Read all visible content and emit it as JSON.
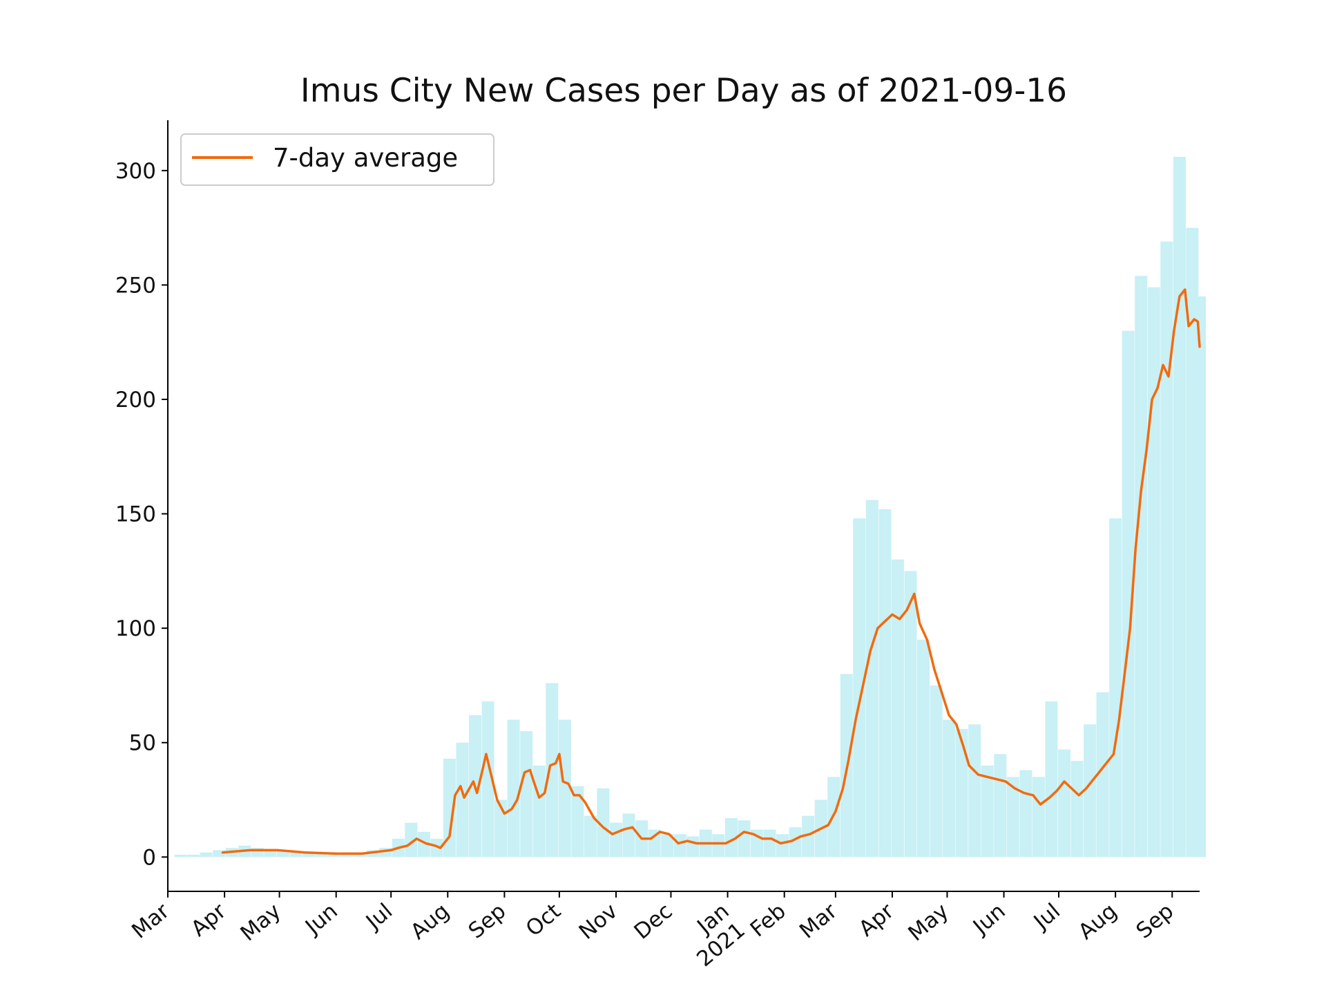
{
  "chart_data": {
    "type": "bar",
    "title": "Imus City New Cases per Day as of 2021-09-16",
    "xlabel": "",
    "ylabel": "",
    "ylim": [
      -15,
      322
    ],
    "xlim": [
      "2020-03-01",
      "2021-09-16"
    ],
    "yticks": [
      0,
      50,
      100,
      150,
      200,
      250,
      300
    ],
    "xticks": [
      {
        "date": "2020-03-01",
        "label": "Mar"
      },
      {
        "date": "2020-04-01",
        "label": "Apr"
      },
      {
        "date": "2020-05-01",
        "label": "May"
      },
      {
        "date": "2020-06-01",
        "label": "Jun"
      },
      {
        "date": "2020-07-01",
        "label": "Jul"
      },
      {
        "date": "2020-08-01",
        "label": "Aug"
      },
      {
        "date": "2020-09-01",
        "label": "Sep"
      },
      {
        "date": "2020-10-01",
        "label": "Oct"
      },
      {
        "date": "2020-11-01",
        "label": "Nov"
      },
      {
        "date": "2020-12-01",
        "label": "Dec"
      },
      {
        "date": "2021-01-01",
        "label": "Jan\n2021"
      },
      {
        "date": "2021-02-01",
        "label": "Feb"
      },
      {
        "date": "2021-03-01",
        "label": "Mar"
      },
      {
        "date": "2021-04-01",
        "label": "Apr"
      },
      {
        "date": "2021-05-01",
        "label": "May"
      },
      {
        "date": "2021-06-01",
        "label": "Jun"
      },
      {
        "date": "2021-07-01",
        "label": "Jul"
      },
      {
        "date": "2021-08-01",
        "label": "Aug"
      },
      {
        "date": "2021-09-01",
        "label": "Sep"
      }
    ],
    "legend": {
      "position": "top-left",
      "entries": [
        "7-day average"
      ]
    },
    "grid": false,
    "series": [
      {
        "name": "",
        "kind": "bar",
        "color": "#c8f0f5",
        "points": [
          [
            "2020-03-08",
            1
          ],
          [
            "2020-03-15",
            1
          ],
          [
            "2020-03-22",
            2
          ],
          [
            "2020-03-29",
            3
          ],
          [
            "2020-04-05",
            4
          ],
          [
            "2020-04-12",
            5
          ],
          [
            "2020-04-19",
            4
          ],
          [
            "2020-04-26",
            3
          ],
          [
            "2020-05-03",
            3
          ],
          [
            "2020-05-10",
            2
          ],
          [
            "2020-05-17",
            2
          ],
          [
            "2020-05-24",
            2
          ],
          [
            "2020-05-31",
            1
          ],
          [
            "2020-06-07",
            2
          ],
          [
            "2020-06-14",
            2
          ],
          [
            "2020-06-21",
            3
          ],
          [
            "2020-06-28",
            4
          ],
          [
            "2020-07-05",
            8
          ],
          [
            "2020-07-12",
            15
          ],
          [
            "2020-07-19",
            11
          ],
          [
            "2020-07-26",
            8
          ],
          [
            "2020-08-02",
            43
          ],
          [
            "2020-08-09",
            50
          ],
          [
            "2020-08-16",
            62
          ],
          [
            "2020-08-23",
            68
          ],
          [
            "2020-08-30",
            25
          ],
          [
            "2020-09-06",
            60
          ],
          [
            "2020-09-13",
            55
          ],
          [
            "2020-09-20",
            40
          ],
          [
            "2020-09-27",
            76
          ],
          [
            "2020-10-04",
            60
          ],
          [
            "2020-10-11",
            31
          ],
          [
            "2020-10-18",
            18
          ],
          [
            "2020-10-25",
            30
          ],
          [
            "2020-11-01",
            15
          ],
          [
            "2020-11-08",
            19
          ],
          [
            "2020-11-15",
            16
          ],
          [
            "2020-11-22",
            12
          ],
          [
            "2020-11-29",
            10
          ],
          [
            "2020-12-06",
            10
          ],
          [
            "2020-12-13",
            9
          ],
          [
            "2020-12-20",
            12
          ],
          [
            "2020-12-27",
            10
          ],
          [
            "2021-01-03",
            17
          ],
          [
            "2021-01-10",
            16
          ],
          [
            "2021-01-17",
            12
          ],
          [
            "2021-01-24",
            12
          ],
          [
            "2021-01-31",
            10
          ],
          [
            "2021-02-07",
            13
          ],
          [
            "2021-02-14",
            18
          ],
          [
            "2021-02-21",
            25
          ],
          [
            "2021-02-28",
            35
          ],
          [
            "2021-03-07",
            80
          ],
          [
            "2021-03-14",
            148
          ],
          [
            "2021-03-21",
            156
          ],
          [
            "2021-03-28",
            152
          ],
          [
            "2021-04-04",
            130
          ],
          [
            "2021-04-11",
            125
          ],
          [
            "2021-04-18",
            95
          ],
          [
            "2021-04-25",
            75
          ],
          [
            "2021-05-02",
            60
          ],
          [
            "2021-05-09",
            56
          ],
          [
            "2021-05-16",
            58
          ],
          [
            "2021-05-23",
            40
          ],
          [
            "2021-05-30",
            45
          ],
          [
            "2021-06-06",
            35
          ],
          [
            "2021-06-13",
            38
          ],
          [
            "2021-06-20",
            35
          ],
          [
            "2021-06-27",
            68
          ],
          [
            "2021-07-04",
            47
          ],
          [
            "2021-07-11",
            42
          ],
          [
            "2021-07-18",
            58
          ],
          [
            "2021-07-25",
            72
          ],
          [
            "2021-08-01",
            148
          ],
          [
            "2021-08-08",
            230
          ],
          [
            "2021-08-15",
            254
          ],
          [
            "2021-08-22",
            249
          ],
          [
            "2021-08-29",
            269
          ],
          [
            "2021-09-05",
            306
          ],
          [
            "2021-09-12",
            275
          ],
          [
            "2021-09-16",
            245
          ]
        ]
      },
      {
        "name": "7-day average",
        "kind": "line",
        "color": "#f26a0c",
        "points": [
          [
            "2020-03-31",
            2
          ],
          [
            "2020-04-15",
            3
          ],
          [
            "2020-04-30",
            3
          ],
          [
            "2020-05-15",
            2
          ],
          [
            "2020-06-01",
            1.5
          ],
          [
            "2020-06-15",
            1.5
          ],
          [
            "2020-07-01",
            3
          ],
          [
            "2020-07-05",
            4
          ],
          [
            "2020-07-10",
            5
          ],
          [
            "2020-07-15",
            8
          ],
          [
            "2020-07-20",
            6
          ],
          [
            "2020-07-25",
            5
          ],
          [
            "2020-07-28",
            4
          ],
          [
            "2020-08-02",
            9
          ],
          [
            "2020-08-05",
            27
          ],
          [
            "2020-08-08",
            31
          ],
          [
            "2020-08-10",
            26
          ],
          [
            "2020-08-15",
            33
          ],
          [
            "2020-08-17",
            28
          ],
          [
            "2020-08-20",
            38
          ],
          [
            "2020-08-22",
            45
          ],
          [
            "2020-08-25",
            35
          ],
          [
            "2020-08-28",
            25
          ],
          [
            "2020-09-01",
            19
          ],
          [
            "2020-09-05",
            21
          ],
          [
            "2020-09-08",
            25
          ],
          [
            "2020-09-12",
            37
          ],
          [
            "2020-09-15",
            38
          ],
          [
            "2020-09-17",
            33
          ],
          [
            "2020-09-20",
            26
          ],
          [
            "2020-09-23",
            28
          ],
          [
            "2020-09-26",
            40
          ],
          [
            "2020-09-29",
            41
          ],
          [
            "2020-10-01",
            45
          ],
          [
            "2020-10-03",
            33
          ],
          [
            "2020-10-06",
            32
          ],
          [
            "2020-10-09",
            27
          ],
          [
            "2020-10-12",
            27
          ],
          [
            "2020-10-15",
            24
          ],
          [
            "2020-10-20",
            17
          ],
          [
            "2020-10-25",
            13
          ],
          [
            "2020-10-30",
            10
          ],
          [
            "2020-11-05",
            12
          ],
          [
            "2020-11-10",
            13
          ],
          [
            "2020-11-15",
            8
          ],
          [
            "2020-11-20",
            8
          ],
          [
            "2020-11-25",
            11
          ],
          [
            "2020-11-30",
            10
          ],
          [
            "2020-12-05",
            6
          ],
          [
            "2020-12-10",
            7
          ],
          [
            "2020-12-15",
            6
          ],
          [
            "2020-12-20",
            6
          ],
          [
            "2020-12-25",
            6
          ],
          [
            "2020-12-31",
            6
          ],
          [
            "2021-01-05",
            8
          ],
          [
            "2021-01-10",
            11
          ],
          [
            "2021-01-15",
            10
          ],
          [
            "2021-01-20",
            8
          ],
          [
            "2021-01-25",
            8
          ],
          [
            "2021-01-30",
            6
          ],
          [
            "2021-02-05",
            7
          ],
          [
            "2021-02-10",
            9
          ],
          [
            "2021-02-15",
            10
          ],
          [
            "2021-02-20",
            12
          ],
          [
            "2021-02-25",
            14
          ],
          [
            "2021-03-01",
            20
          ],
          [
            "2021-03-05",
            30
          ],
          [
            "2021-03-08",
            42
          ],
          [
            "2021-03-12",
            60
          ],
          [
            "2021-03-16",
            75
          ],
          [
            "2021-03-20",
            90
          ],
          [
            "2021-03-24",
            100
          ],
          [
            "2021-03-28",
            103
          ],
          [
            "2021-04-01",
            106
          ],
          [
            "2021-04-05",
            104
          ],
          [
            "2021-04-09",
            108
          ],
          [
            "2021-04-13",
            115
          ],
          [
            "2021-04-16",
            102
          ],
          [
            "2021-04-20",
            95
          ],
          [
            "2021-04-24",
            82
          ],
          [
            "2021-04-28",
            72
          ],
          [
            "2021-05-02",
            62
          ],
          [
            "2021-05-06",
            58
          ],
          [
            "2021-05-10",
            48
          ],
          [
            "2021-05-13",
            40
          ],
          [
            "2021-05-18",
            36
          ],
          [
            "2021-05-23",
            35
          ],
          [
            "2021-05-28",
            34
          ],
          [
            "2021-06-02",
            33
          ],
          [
            "2021-06-07",
            30
          ],
          [
            "2021-06-12",
            28
          ],
          [
            "2021-06-17",
            27
          ],
          [
            "2021-06-21",
            23
          ],
          [
            "2021-06-26",
            26
          ],
          [
            "2021-06-30",
            29
          ],
          [
            "2021-07-04",
            33
          ],
          [
            "2021-07-08",
            30
          ],
          [
            "2021-07-12",
            27
          ],
          [
            "2021-07-16",
            30
          ],
          [
            "2021-07-20",
            34
          ],
          [
            "2021-07-24",
            38
          ],
          [
            "2021-07-28",
            42
          ],
          [
            "2021-07-31",
            45
          ],
          [
            "2021-08-03",
            60
          ],
          [
            "2021-08-06",
            80
          ],
          [
            "2021-08-09",
            100
          ],
          [
            "2021-08-12",
            135
          ],
          [
            "2021-08-15",
            160
          ],
          [
            "2021-08-18",
            178
          ],
          [
            "2021-08-21",
            200
          ],
          [
            "2021-08-24",
            205
          ],
          [
            "2021-08-27",
            215
          ],
          [
            "2021-08-30",
            210
          ],
          [
            "2021-09-02",
            230
          ],
          [
            "2021-09-05",
            245
          ],
          [
            "2021-09-08",
            248
          ],
          [
            "2021-09-10",
            232
          ],
          [
            "2021-09-13",
            235
          ],
          [
            "2021-09-15",
            234
          ],
          [
            "2021-09-16",
            223
          ]
        ]
      }
    ]
  }
}
